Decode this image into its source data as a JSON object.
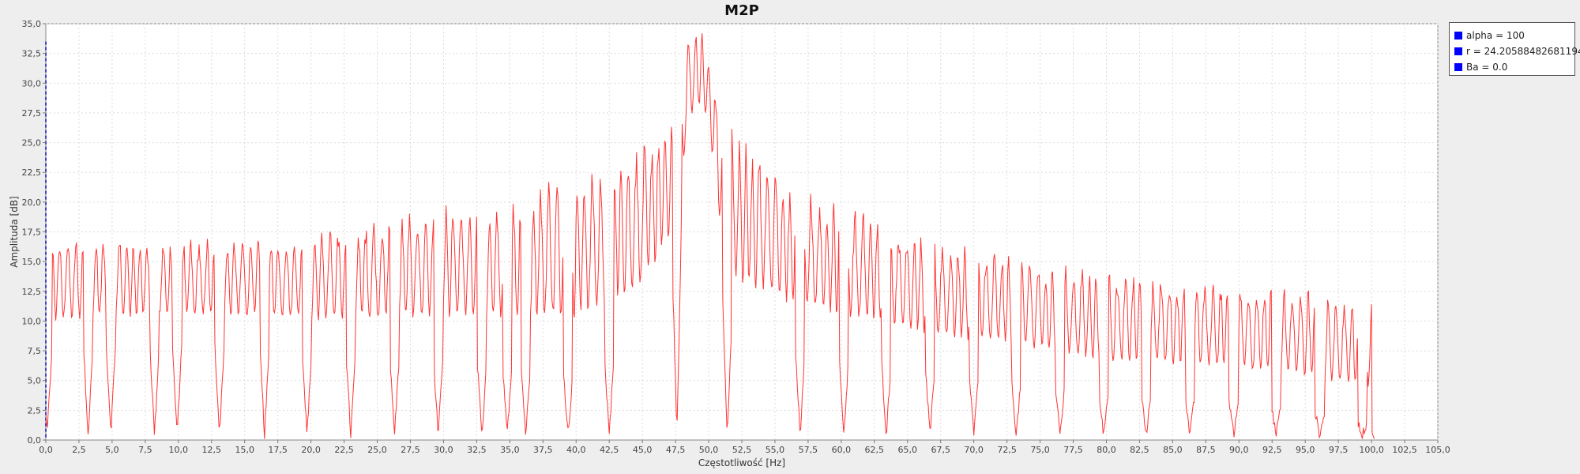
{
  "chart_data": {
    "type": "line",
    "title": "M2P",
    "xlabel": "Częstotliwość [Hz]",
    "ylabel": "Amplituda [dB]",
    "xlim": [
      0,
      105
    ],
    "ylim": [
      0,
      35
    ],
    "x_ticks": [
      "0,0",
      "2,5",
      "5,0",
      "7,5",
      "10,0",
      "12,5",
      "15,0",
      "17,5",
      "20,0",
      "22,5",
      "25,0",
      "27,5",
      "30,0",
      "32,5",
      "35,0",
      "37,5",
      "40,0",
      "42,5",
      "45,0",
      "47,5",
      "50,0",
      "52,5",
      "55,0",
      "57,5",
      "60,0",
      "62,5",
      "65,0",
      "67,5",
      "70,0",
      "72,5",
      "75,0",
      "77,5",
      "80,0",
      "82,5",
      "85,0",
      "87,5",
      "90,0",
      "92,5",
      "95,0",
      "97,5",
      "100,0",
      "102,5",
      "105,0"
    ],
    "y_ticks": [
      "0,0",
      "2,5",
      "5,0",
      "7,5",
      "10,0",
      "12,5",
      "15,0",
      "17,5",
      "20,0",
      "22,5",
      "25,0",
      "27,5",
      "30,0",
      "32,5",
      "35,0"
    ],
    "grid": true,
    "legend_position": "right",
    "series": [
      {
        "name": "alpha = 100",
        "color": "#ff3333",
        "x_start": 0,
        "x_end": 100,
        "points": 1600,
        "envelope_max": [
          [
            0,
            17.2
          ],
          [
            10,
            17.0
          ],
          [
            20,
            17.5
          ],
          [
            25,
            18.8
          ],
          [
            30,
            19.8
          ],
          [
            35,
            20.3
          ],
          [
            38,
            22.2
          ],
          [
            40,
            22.6
          ],
          [
            42,
            23.3
          ],
          [
            44,
            24.3
          ],
          [
            46,
            26.0
          ],
          [
            47.5,
            28.0
          ],
          [
            48.5,
            34.5
          ],
          [
            49.5,
            34.5
          ],
          [
            50.5,
            30.0
          ],
          [
            52,
            25.8
          ],
          [
            54,
            25.0
          ],
          [
            56,
            22.0
          ],
          [
            58,
            21.0
          ],
          [
            60,
            20.0
          ],
          [
            62,
            19.2
          ],
          [
            65,
            18.0
          ],
          [
            67,
            17.0
          ],
          [
            70,
            16.4
          ],
          [
            72,
            16.0
          ],
          [
            75,
            15.2
          ],
          [
            80,
            14.2
          ],
          [
            85,
            13.8
          ],
          [
            90,
            13.2
          ],
          [
            95,
            13.0
          ],
          [
            98,
            12.2
          ],
          [
            100,
            12.2
          ]
        ],
        "envelope_min": [
          [
            0,
            7.0
          ],
          [
            5,
            7.5
          ],
          [
            15,
            7.5
          ],
          [
            25,
            6.5
          ],
          [
            35,
            6.0
          ],
          [
            40,
            5.0
          ],
          [
            45,
            8.0
          ],
          [
            47,
            12.0
          ],
          [
            48,
            19.0
          ],
          [
            49,
            26.0
          ],
          [
            50,
            24.0
          ],
          [
            51,
            12.0
          ],
          [
            52,
            8.0
          ],
          [
            55,
            7.0
          ],
          [
            60,
            6.5
          ],
          [
            70,
            5.0
          ],
          [
            80,
            3.5
          ],
          [
            90,
            3.0
          ],
          [
            100,
            1.0
          ]
        ],
        "deep_dips_x": [
          0.1,
          3.2,
          4.9,
          8.2,
          9.9,
          13.1,
          16.5,
          19.7,
          23.0,
          26.3,
          29.6,
          32.9,
          34.8,
          36.2,
          39.4,
          42.5,
          47.6,
          51.4,
          56.9,
          60.2,
          63.4,
          66.7,
          70.0,
          73.2,
          76.5,
          79.8,
          83.0,
          86.3,
          89.6,
          92.8,
          96.1,
          99.3
        ]
      },
      {
        "name": "r = 24.20588482681194",
        "color": "#0000ff"
      },
      {
        "name": "Ba = 0.0",
        "color": "#0000ff"
      }
    ]
  }
}
